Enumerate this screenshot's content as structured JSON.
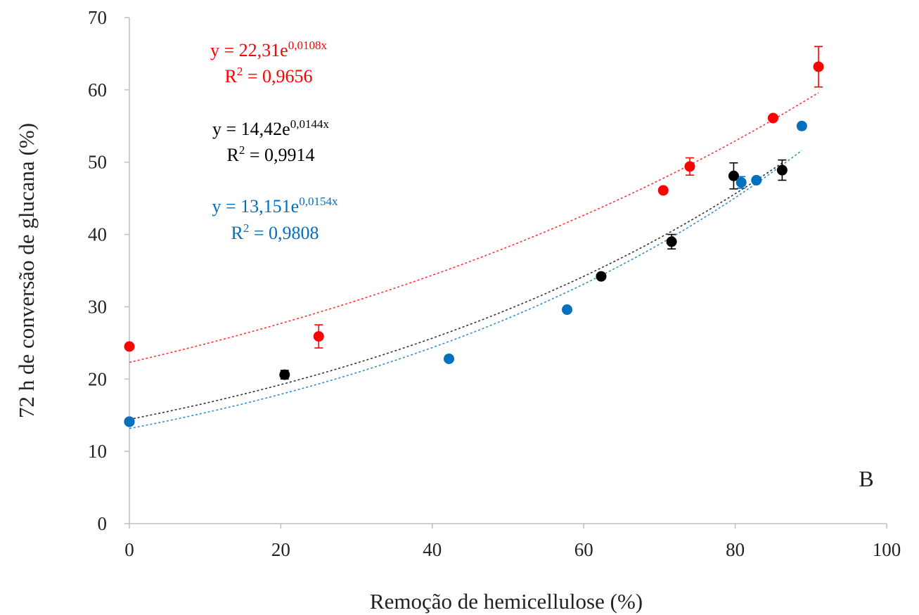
{
  "chart_data": {
    "type": "scatter",
    "xlabel": "Remoção de hemicellulose (%)",
    "ylabel": "72 h de conversão de glucana (%)",
    "panel_label": "B",
    "xlim": [
      0,
      100
    ],
    "ylim": [
      0,
      70
    ],
    "x_ticks": [
      0,
      20,
      40,
      60,
      80,
      100
    ],
    "y_ticks": [
      0,
      10,
      20,
      30,
      40,
      50,
      60,
      70
    ],
    "grid": false,
    "series": [
      {
        "color": "#ff0000",
        "points": [
          {
            "x": 0,
            "y": 24.5,
            "err": 0
          },
          {
            "x": 25,
            "y": 25.9,
            "err": 1.6
          },
          {
            "x": 70.5,
            "y": 46.1,
            "err": 0
          },
          {
            "x": 74,
            "y": 49.4,
            "err": 1.2
          },
          {
            "x": 85,
            "y": 56.1,
            "err": 0
          },
          {
            "x": 91,
            "y": 63.2,
            "err": 2.8
          }
        ],
        "trendline": {
          "model": "exponential",
          "a": 22.31,
          "b": 0.0108,
          "x_range": [
            0,
            91
          ],
          "equation_prefix": "y = 22,31e",
          "equation_exponent": "0,0108x",
          "r2_prefix": "R",
          "r2_sup": "2",
          "r2_value": " = 0,9656"
        }
      },
      {
        "color": "#000000",
        "points": [
          {
            "x": 0,
            "y": 14.1,
            "err": 0
          },
          {
            "x": 20.5,
            "y": 20.6,
            "err": 0.6
          },
          {
            "x": 62.3,
            "y": 34.2,
            "err": 0
          },
          {
            "x": 71.6,
            "y": 39.0,
            "err": 1.0
          },
          {
            "x": 79.8,
            "y": 48.1,
            "err": 1.8
          },
          {
            "x": 86.2,
            "y": 48.9,
            "err": 1.4
          }
        ],
        "trendline": {
          "model": "exponential",
          "a": 14.42,
          "b": 0.0144,
          "x_range": [
            0,
            86.2
          ],
          "equation_prefix": "y = 14,42e",
          "equation_exponent": "0,0144x",
          "r2_prefix": "R",
          "r2_sup": "2",
          "r2_value": " = 0,9914"
        }
      },
      {
        "color": "#0070c0",
        "points": [
          {
            "x": 0,
            "y": 14.1,
            "err": 0
          },
          {
            "x": 42.2,
            "y": 22.8,
            "err": 0
          },
          {
            "x": 57.8,
            "y": 29.6,
            "err": 0
          },
          {
            "x": 80.8,
            "y": 47.2,
            "err": 0.8
          },
          {
            "x": 82.8,
            "y": 47.5,
            "err": 0
          },
          {
            "x": 88.8,
            "y": 55.0,
            "err": 0
          }
        ],
        "trendline": {
          "model": "exponential",
          "a": 13.151,
          "b": 0.0154,
          "x_range": [
            0,
            88.8
          ],
          "equation_prefix": "y = 13,151e",
          "equation_exponent": "0,0154x",
          "r2_prefix": "R",
          "r2_sup": "2",
          "r2_value": " = 0,9808"
        }
      }
    ]
  }
}
